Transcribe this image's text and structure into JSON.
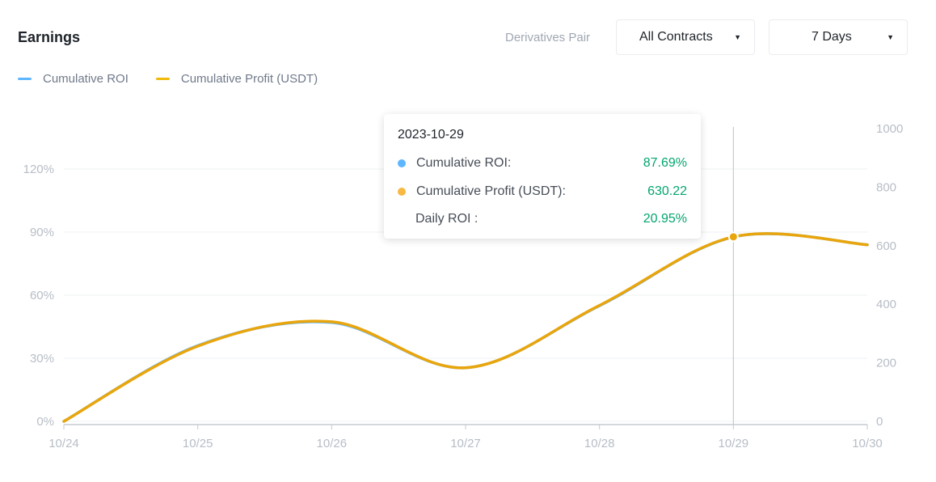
{
  "header": {
    "title": "Earnings",
    "pair_label": "Derivatives Pair",
    "contract_select": "All Contracts",
    "period_select": "7 Days"
  },
  "colors": {
    "roi": "#5eb6ff",
    "profit": "#f0b90b",
    "profit_line": "#e9a50c",
    "positive": "#03a66d"
  },
  "icons": {
    "dropdown": "caret-down-icon"
  },
  "tooltip": {
    "date": "2023-10-29",
    "rows": [
      {
        "label": "Cumulative ROI:",
        "value": "87.69%"
      },
      {
        "label": "Cumulative Profit (USDT):",
        "value": "630.22"
      },
      {
        "label": "Daily ROI :",
        "value": "20.95%"
      }
    ]
  },
  "chart_data": {
    "type": "line",
    "categories": [
      "10/24",
      "10/25",
      "10/26",
      "10/27",
      "10/28",
      "10/29",
      "10/30"
    ],
    "series": [
      {
        "name": "Cumulative ROI",
        "axis": "left",
        "values": [
          0,
          36,
          47,
          25.5,
          55,
          87.69,
          84
        ]
      },
      {
        "name": "Cumulative Profit (USDT)",
        "axis": "right",
        "values": [
          0,
          257,
          340,
          183,
          396,
          630.22,
          603
        ]
      }
    ],
    "y_left": {
      "ticks": [
        "0%",
        "30%",
        "60%",
        "90%",
        "120%"
      ],
      "range": [
        0,
        150
      ]
    },
    "y_right": {
      "ticks": [
        "0",
        "200",
        "400",
        "600",
        "800",
        "1000"
      ],
      "range": [
        0,
        1000
      ]
    },
    "grid": true,
    "legend": "top-left",
    "highlight": "10/29"
  }
}
